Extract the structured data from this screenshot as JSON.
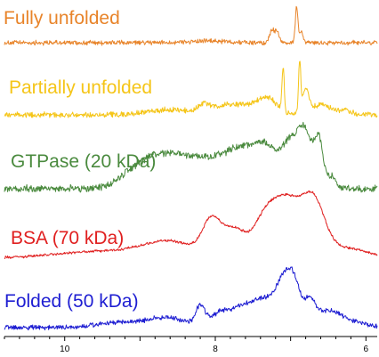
{
  "chart_data": {
    "type": "line",
    "xlabel": "",
    "ylabel": "",
    "title": "",
    "xlim": [
      10.8,
      5.85
    ],
    "x_reversed": true,
    "x_ticks": [
      10,
      8,
      6
    ],
    "x_tick_labels": [
      "10",
      "8",
      "6"
    ],
    "grid": false,
    "legend": "inline labels above each trace",
    "series": [
      {
        "name": "Fully unfolded",
        "color": "#E8842A",
        "baseline": 0.0,
        "noise": 0.35,
        "peaks": [
          [
            7.25,
            2.4,
            0.03
          ],
          [
            7.18,
            2.0,
            0.03
          ],
          [
            6.92,
            6.6,
            0.018
          ],
          [
            6.86,
            2.0,
            0.02
          ],
          [
            8.1,
            0.3,
            0.3
          ]
        ]
      },
      {
        "name": "Partially unfolded",
        "color": "#F5C518",
        "baseline": 0.0,
        "noise": 0.35,
        "peaks": [
          [
            8.6,
            0.8,
            0.3
          ],
          [
            8.15,
            1.5,
            0.08
          ],
          [
            7.9,
            1.0,
            0.12
          ],
          [
            7.6,
            1.6,
            0.2
          ],
          [
            7.3,
            2.3,
            0.12
          ],
          [
            7.1,
            7.2,
            0.015
          ],
          [
            6.88,
            8.2,
            0.015
          ],
          [
            6.8,
            4.0,
            0.04
          ],
          [
            6.6,
            1.6,
            0.12
          ],
          [
            6.3,
            0.6,
            0.1
          ]
        ]
      },
      {
        "name": "GTPase (20 kDa)",
        "color": "#4A8A3E",
        "baseline": 0.0,
        "noise": 0.5,
        "peaks": [
          [
            9.1,
            2.5,
            0.2
          ],
          [
            8.8,
            3.0,
            0.2
          ],
          [
            8.5,
            4.0,
            0.25
          ],
          [
            8.0,
            4.5,
            0.3
          ],
          [
            7.6,
            5.0,
            0.2
          ],
          [
            7.3,
            5.5,
            0.15
          ],
          [
            7.0,
            7.0,
            0.12
          ],
          [
            6.8,
            8.5,
            0.1
          ],
          [
            6.62,
            7.5,
            0.06
          ],
          [
            6.45,
            2.0,
            0.05
          ]
        ]
      },
      {
        "name": "BSA (70 kDa)",
        "color": "#E02020",
        "baseline": 0.0,
        "noise": 0.12,
        "peaks": [
          [
            9.5,
            0.8,
            0.6
          ],
          [
            8.6,
            1.8,
            0.35
          ],
          [
            8.05,
            4.0,
            0.12
          ],
          [
            7.75,
            3.3,
            0.15
          ],
          [
            7.35,
            4.2,
            0.15
          ],
          [
            7.05,
            6.5,
            0.18
          ],
          [
            6.7,
            6.2,
            0.15
          ],
          [
            6.3,
            1.2,
            0.3
          ]
        ]
      },
      {
        "name": "Folded (50 kDa)",
        "color": "#1E1ED2",
        "baseline": 0.0,
        "noise": 0.25,
        "peaks": [
          [
            9.3,
            0.6,
            0.3
          ],
          [
            8.65,
            1.3,
            0.25
          ],
          [
            8.2,
            2.5,
            0.06
          ],
          [
            7.9,
            2.2,
            0.15
          ],
          [
            7.6,
            2.6,
            0.12
          ],
          [
            7.35,
            3.5,
            0.12
          ],
          [
            7.1,
            6.0,
            0.1
          ],
          [
            6.95,
            5.0,
            0.08
          ],
          [
            6.75,
            3.3,
            0.08
          ],
          [
            6.5,
            2.0,
            0.15
          ],
          [
            6.2,
            0.8,
            0.2
          ]
        ]
      }
    ]
  }
}
